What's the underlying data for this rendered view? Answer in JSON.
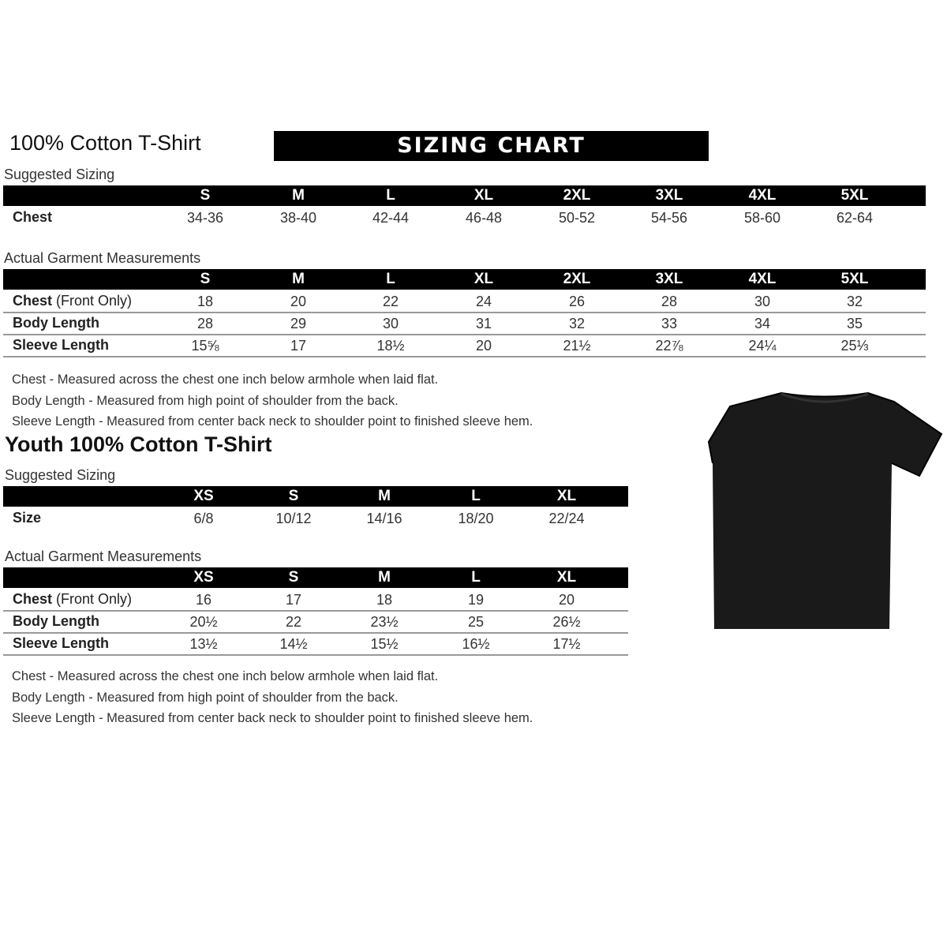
{
  "adult": {
    "title": "100% Cotton T-Shirt",
    "banner": "SIZING CHART",
    "suggested_label": "Suggested Sizing",
    "sizes": [
      "S",
      "M",
      "L",
      "XL",
      "2XL",
      "3XL",
      "4XL",
      "5XL"
    ],
    "suggested_rows": [
      {
        "label": "Chest",
        "note": "",
        "values": [
          "34-36",
          "38-40",
          "42-44",
          "46-48",
          "50-52",
          "54-56",
          "58-60",
          "62-64"
        ]
      }
    ],
    "actual_label": "Actual Garment Measurements",
    "actual_rows": [
      {
        "label": "Chest",
        "note": " (Front Only)",
        "values": [
          "18",
          "20",
          "22",
          "24",
          "26",
          "28",
          "30",
          "32"
        ]
      },
      {
        "label": "Body Length",
        "note": "",
        "values": [
          "28",
          "29",
          "30",
          "31",
          "32",
          "33",
          "34",
          "35"
        ]
      },
      {
        "label": "Sleeve Length",
        "note": "",
        "values": [
          "15⅝",
          "17",
          "18½",
          "20",
          "21½",
          "22⅞",
          "24¼",
          "25⅓"
        ]
      }
    ],
    "notes": [
      "Chest - Measured across the chest one inch below armhole when laid flat.",
      "Body Length - Measured from high point of shoulder from the back.",
      "Sleeve Length - Measured from center back neck to shoulder point to finished sleeve hem."
    ]
  },
  "youth": {
    "title": "Youth 100% Cotton T-Shirt",
    "suggested_label": "Suggested Sizing",
    "sizes": [
      "XS",
      "S",
      "M",
      "L",
      "XL"
    ],
    "suggested_rows": [
      {
        "label": "Size",
        "note": "",
        "values": [
          "6/8",
          "10/12",
          "14/16",
          "18/20",
          "22/24"
        ]
      }
    ],
    "actual_label": "Actual Garment Measurements",
    "actual_rows": [
      {
        "label": "Chest",
        "note": " (Front Only)",
        "values": [
          "16",
          "17",
          "18",
          "19",
          "20"
        ]
      },
      {
        "label": "Body Length",
        "note": "",
        "values": [
          "20½",
          "22",
          "23½",
          "25",
          "26½"
        ]
      },
      {
        "label": "Sleeve Length",
        "note": "",
        "values": [
          "13½",
          "14½",
          "15½",
          "16½",
          "17½"
        ]
      }
    ],
    "notes": [
      "Chest - Measured across the chest one inch below armhole when laid flat.",
      "Body Length - Measured from high point of shoulder from the back.",
      "Sleeve Length - Measured from center back neck to shoulder point to finished sleeve hem."
    ]
  },
  "image": {
    "icon": "black-tshirt-icon",
    "color": "#1a1a1a"
  }
}
